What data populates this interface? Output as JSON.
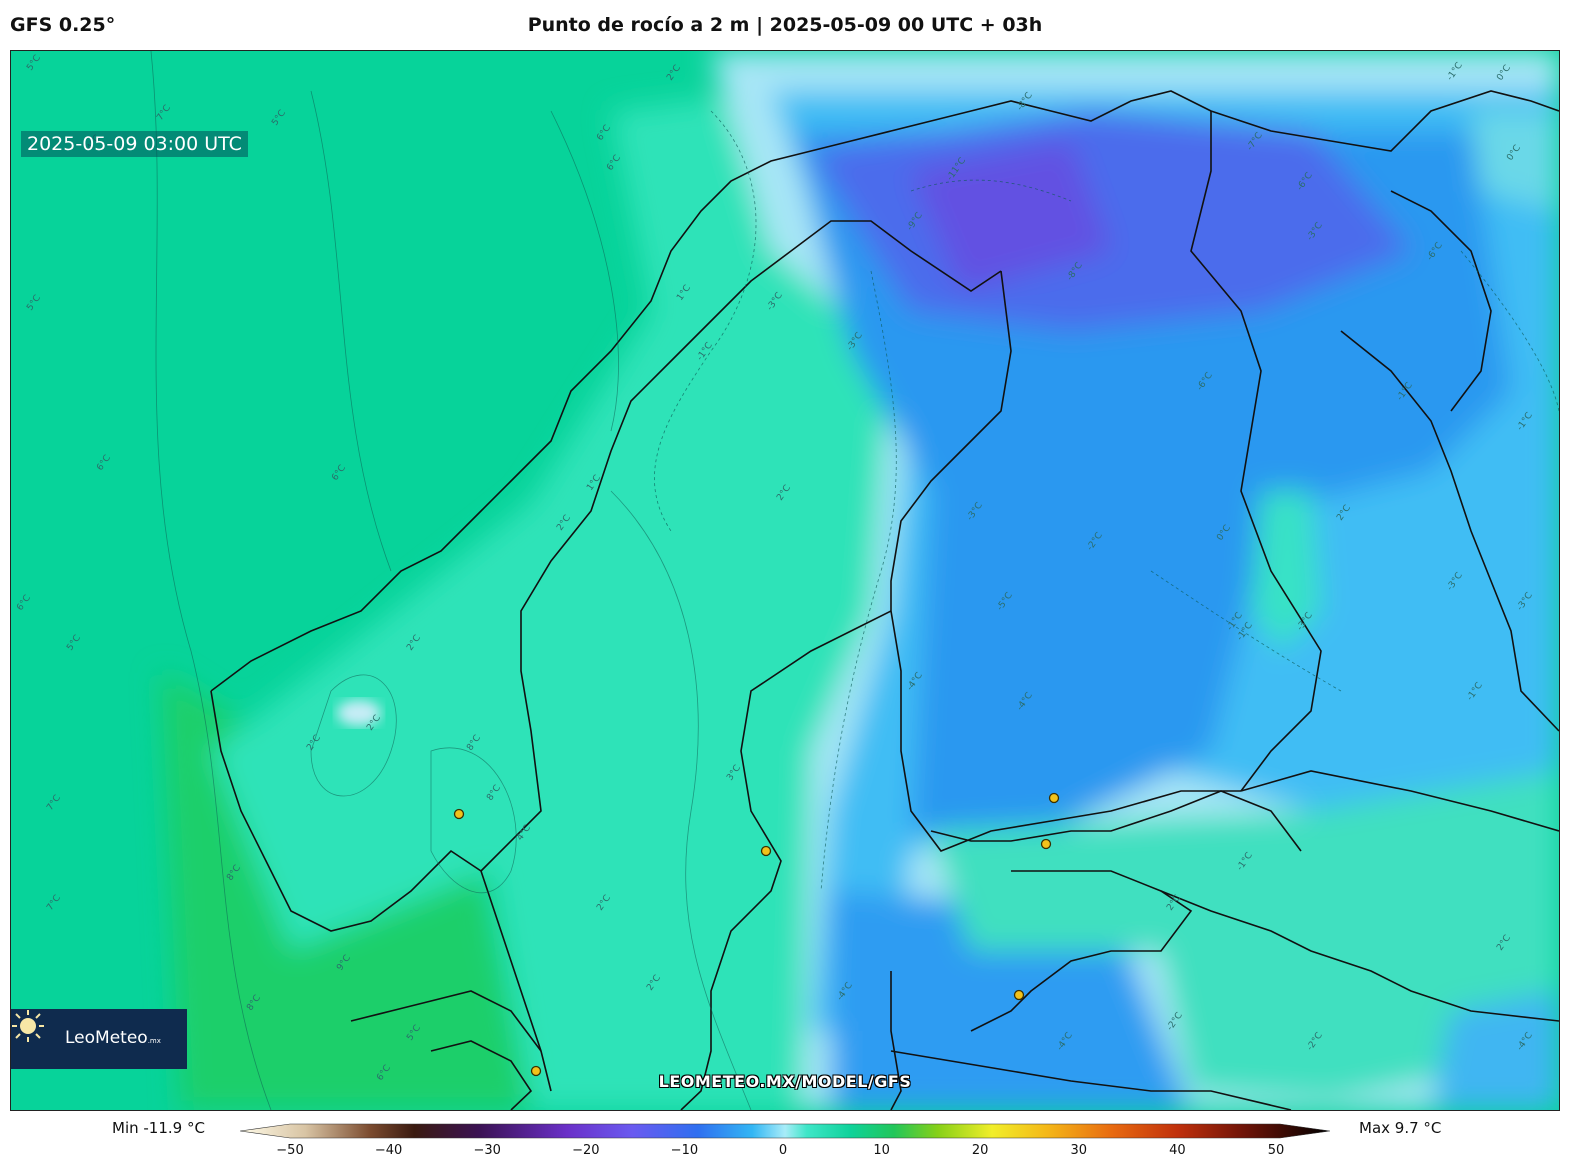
{
  "header": {
    "model": "GFS 0.25°",
    "title": "Punto de rocío a 2 m | 2025-05-09 00 UTC + 03h"
  },
  "map": {
    "valid_time": "2025-05-09 03:00 UTC",
    "watermark": "LEOMETEO.MX/MODEL/GFS",
    "logo_name": "LeoMeteo",
    "logo_suffix": ".mx",
    "contour_labels": [
      "1°C",
      "2°C",
      "3°C",
      "4°C",
      "5°C",
      "6°C",
      "7°C",
      "8°C",
      "9°C",
      "0°C",
      "-1°C",
      "-2°C",
      "-3°C",
      "-4°C",
      "-5°C",
      "-6°C",
      "-7°C",
      "-8°C",
      "-9°C",
      "-10°C",
      "-11°C"
    ],
    "colors": {
      "sea_warm": "#07d39a",
      "land_green": "#1ecf6a",
      "mid_teal": "#28e8c0",
      "light_cyan": "#aee8f8",
      "sky_blue": "#3cb8f4",
      "blue": "#2a92f0",
      "violet": "#5a5ae6"
    }
  },
  "colorbar": {
    "min_label": "Min -11.9 °C",
    "max_label": "Max 9.7 °C",
    "ticks": [
      "−50",
      "−40",
      "−30",
      "−20",
      "−10",
      "0",
      "10",
      "20",
      "30",
      "40",
      "50"
    ],
    "range": [
      -50,
      50
    ]
  }
}
